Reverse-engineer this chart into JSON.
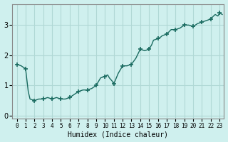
{
  "xlabel": "Humidex (Indice chaleur)",
  "ylabel": "",
  "background_color": "#cff0ee",
  "grid_color": "#b0d8d5",
  "line_color": "#1a6b60",
  "marker_color": "#1a6b60",
  "ylim": [
    -0.1,
    3.7
  ],
  "xlim": [
    -0.5,
    23.5
  ],
  "yticks": [
    0,
    1,
    2,
    3
  ],
  "xticks": [
    0,
    1,
    2,
    3,
    4,
    5,
    6,
    7,
    8,
    9,
    10,
    11,
    12,
    13,
    14,
    15,
    16,
    17,
    18,
    19,
    20,
    21,
    22,
    23
  ],
  "x": [
    0,
    0.5,
    1,
    1.3,
    1.5,
    2,
    2.5,
    3,
    3.5,
    4,
    4.5,
    5,
    5.5,
    6,
    6.5,
    7,
    7.5,
    8,
    8.5,
    9,
    9.5,
    10,
    10.3,
    10.5,
    10.8,
    11,
    11.5,
    12,
    12.3,
    12.5,
    13,
    13.5,
    14,
    14.5,
    15,
    15.3,
    15.5,
    16,
    16.3,
    16.5,
    17,
    17.5,
    18,
    18.5,
    19,
    19.5,
    20,
    20.5,
    21,
    21.5,
    22,
    22.3,
    22.5,
    22.8,
    23,
    23.3
  ],
  "y": [
    1.7,
    1.65,
    1.55,
    0.8,
    0.55,
    0.5,
    0.55,
    0.55,
    0.6,
    0.55,
    0.6,
    0.55,
    0.55,
    0.6,
    0.7,
    0.8,
    0.85,
    0.85,
    0.9,
    1.0,
    1.25,
    1.3,
    1.35,
    1.25,
    1.15,
    1.05,
    1.4,
    1.65,
    1.65,
    1.65,
    1.7,
    1.9,
    2.2,
    2.15,
    2.2,
    2.35,
    2.5,
    2.55,
    2.6,
    2.65,
    2.7,
    2.85,
    2.85,
    2.9,
    3.0,
    3.0,
    2.95,
    3.05,
    3.1,
    3.15,
    3.2,
    3.3,
    3.35,
    3.3,
    3.4,
    3.35
  ],
  "marker_x": [
    0,
    1,
    2,
    3,
    4,
    5,
    6,
    7,
    8,
    9,
    10,
    11,
    12,
    13,
    14,
    15,
    16,
    17,
    18,
    19,
    20,
    21,
    22,
    23
  ],
  "marker_y": [
    1.7,
    1.55,
    0.5,
    0.55,
    0.55,
    0.55,
    0.6,
    0.8,
    0.85,
    1.0,
    1.3,
    1.05,
    1.65,
    1.7,
    2.2,
    2.2,
    2.55,
    2.7,
    2.85,
    3.0,
    2.95,
    3.1,
    3.2,
    3.4
  ]
}
